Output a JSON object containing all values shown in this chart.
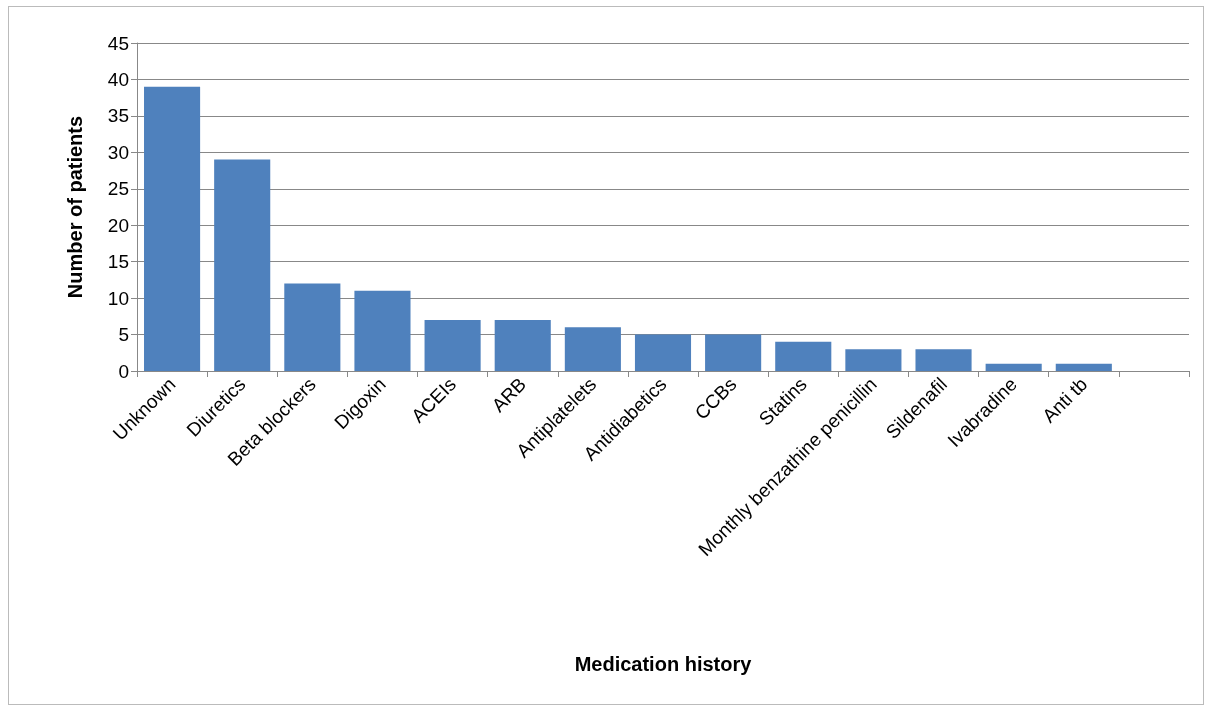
{
  "chart_data": {
    "type": "bar",
    "xlabel": "Medication history",
    "ylabel": "Number of patients",
    "categories": [
      "Unknown",
      "Diuretics",
      "Beta blockers",
      "Digoxin",
      "ACEIs",
      "ARB",
      "Antiplatelets",
      "Antidiabetics",
      "CCBs",
      "Statins",
      "Monthly benzathine penicillin",
      "Sildenafil",
      "Ivabradine",
      "Anti tb",
      null
    ],
    "values": [
      39,
      29,
      12,
      11,
      7,
      7,
      6,
      5,
      5,
      4,
      3,
      3,
      1,
      1,
      null
    ],
    "color": "#4f81bd",
    "ylim": [
      0,
      45
    ],
    "yticks": [
      0,
      5,
      10,
      15,
      20,
      25,
      30,
      35,
      40,
      45
    ],
    "grid": "y"
  }
}
